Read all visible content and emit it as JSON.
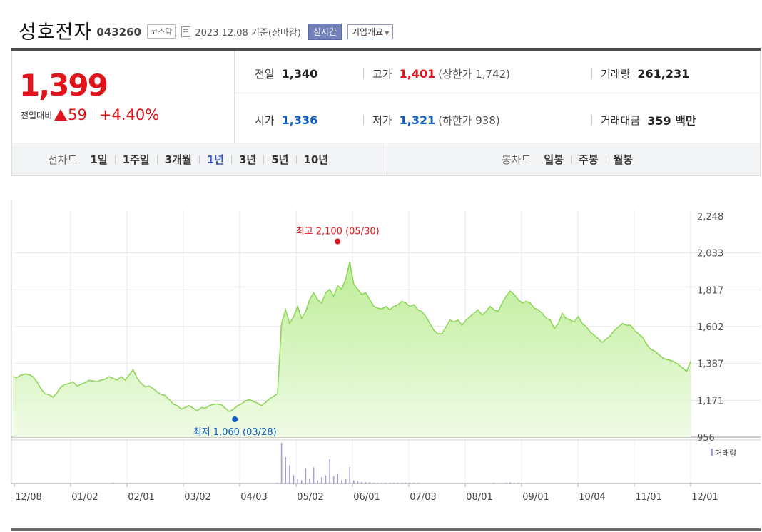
{
  "header": {
    "name": "성호전자",
    "code": "043260",
    "market": "코스닥",
    "date": "2023.12.08 기준(장마감)",
    "realtime_label": "실시간",
    "overview_label": "기업개요"
  },
  "price": {
    "current": "1,399",
    "change_label": "전일대비",
    "change": "59",
    "change_pct": "+4.40%"
  },
  "stats": {
    "prev_label": "전일",
    "prev": "1,340",
    "high_label": "고가",
    "high": "1,401",
    "upper_limit": "(상한가 1,742)",
    "volume_label": "거래량",
    "volume": "261,231",
    "open_label": "시가",
    "open": "1,336",
    "low_label": "저가",
    "low": "1,321",
    "lower_limit": "(하한가 938)",
    "amount_label": "거래대금",
    "amount": "359 백만"
  },
  "periods": {
    "line_label": "선차트",
    "items": [
      "1일",
      "1주일",
      "3개월",
      "1년",
      "3년",
      "5년",
      "10년"
    ],
    "active": "1년",
    "candle_label": "봉차트",
    "candle_items": [
      "일봉",
      "주봉",
      "월봉"
    ]
  },
  "colors": {
    "up": "#e1141b",
    "down": "#0d5fc6",
    "line": "#8fd65a",
    "volume": "#a99bd8"
  },
  "chart_data": {
    "type": "area",
    "x_tick_labels": [
      "12/08",
      "01/02",
      "02/01",
      "03/02",
      "04/03",
      "05/02",
      "06/01",
      "07/03",
      "08/01",
      "09/01",
      "10/04",
      "11/01",
      "12/01"
    ],
    "ylim": [
      956,
      2248
    ],
    "y_ticks": [
      "2,248",
      "2,033",
      "1,817",
      "1,602",
      "1,387",
      "1,171",
      "956"
    ],
    "series": [
      {
        "values": [
          1310,
          1305,
          1318,
          1325,
          1322,
          1310,
          1280,
          1240,
          1210,
          1205,
          1190,
          1215,
          1250,
          1265,
          1268,
          1280,
          1255,
          1265,
          1275,
          1288,
          1285,
          1280,
          1290,
          1295,
          1310,
          1300,
          1290,
          1310,
          1290,
          1320,
          1350,
          1300,
          1270,
          1250,
          1255,
          1240,
          1220,
          1205,
          1200,
          1175,
          1150,
          1140,
          1120,
          1130,
          1140,
          1125,
          1110,
          1130,
          1125,
          1140,
          1148,
          1150,
          1145,
          1125,
          1105,
          1120,
          1140,
          1150,
          1168,
          1175,
          1165,
          1155,
          1140,
          1158,
          1180,
          1195,
          1210,
          1620,
          1700,
          1620,
          1660,
          1720,
          1650,
          1690,
          1760,
          1800,
          1760,
          1740,
          1800,
          1820,
          1780,
          1840,
          1820,
          1880,
          1980,
          1850,
          1820,
          1790,
          1800,
          1760,
          1720,
          1710,
          1705,
          1720,
          1700,
          1720,
          1730,
          1750,
          1740,
          1720,
          1730,
          1700,
          1690,
          1660,
          1620,
          1580,
          1560,
          1560,
          1600,
          1640,
          1630,
          1640,
          1610,
          1640,
          1660,
          1680,
          1700,
          1670,
          1690,
          1720,
          1700,
          1690,
          1740,
          1780,
          1810,
          1790,
          1760,
          1740,
          1750,
          1740,
          1710,
          1700,
          1680,
          1650,
          1640,
          1590,
          1620,
          1680,
          1650,
          1640,
          1630,
          1660,
          1620,
          1600,
          1570,
          1550,
          1530,
          1510,
          1530,
          1550,
          1580,
          1600,
          1620,
          1610,
          1610,
          1580,
          1560,
          1540,
          1500,
          1470,
          1460,
          1440,
          1420,
          1410,
          1405,
          1395,
          1380,
          1360,
          1340,
          1399
        ]
      }
    ],
    "annotations": {
      "high_label": "최고 2,100 (05/30)",
      "high_value": 2100,
      "high_index": 84,
      "low_label": "최저 1,060 (03/28)",
      "low_value": 1060,
      "low_index": 55
    },
    "volume_label": "거래량",
    "volume": [
      1,
      1,
      1,
      1,
      1,
      1,
      1,
      1,
      1,
      1,
      1,
      1,
      1,
      1,
      1,
      1,
      1,
      1,
      1,
      1,
      1,
      1,
      1,
      1,
      1,
      2,
      1,
      1,
      1,
      1,
      1,
      1,
      1,
      1,
      1,
      1,
      1,
      1,
      1,
      1,
      1,
      1,
      1,
      1,
      1,
      1,
      1,
      1,
      1,
      1,
      1,
      1,
      1,
      1,
      1,
      1,
      1,
      1,
      1,
      1,
      1,
      1,
      1,
      1,
      1,
      1,
      2,
      100,
      65,
      45,
      20,
      10,
      8,
      38,
      12,
      40,
      8,
      15,
      20,
      60,
      18,
      25,
      8,
      10,
      40,
      8,
      6,
      4,
      3,
      3,
      2,
      2,
      2,
      2,
      2,
      2,
      2,
      2,
      2,
      2,
      2,
      2,
      1,
      1,
      1,
      1,
      1,
      1,
      1,
      1,
      1,
      1,
      1,
      1,
      1,
      1,
      1,
      1,
      1,
      1,
      2,
      1,
      1,
      2,
      3,
      2,
      2,
      1,
      1,
      1,
      1,
      1,
      1,
      1,
      1,
      1,
      1,
      1,
      1,
      1,
      1,
      1,
      1,
      1,
      1,
      1,
      1,
      1,
      1,
      1,
      1,
      1,
      1,
      1,
      1,
      1,
      1,
      1,
      1,
      1,
      1,
      1,
      1,
      1,
      1,
      1,
      1,
      1,
      1,
      2
    ]
  }
}
